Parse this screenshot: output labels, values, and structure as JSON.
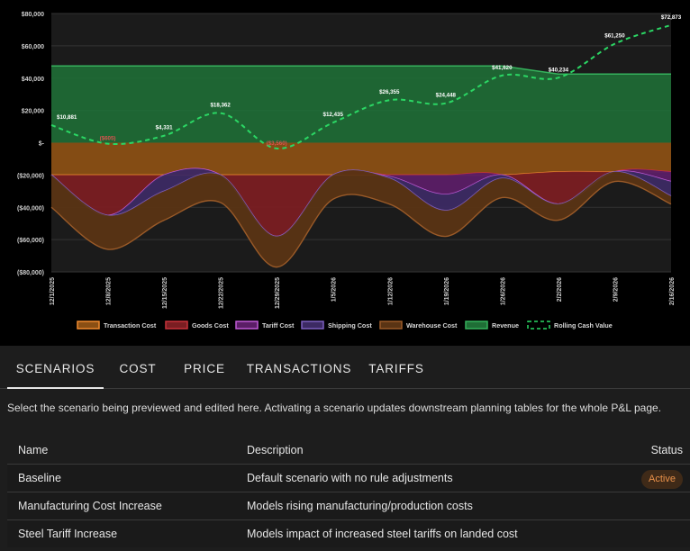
{
  "chart_data": {
    "type": "area",
    "categories": [
      "12/1/2025",
      "12/8/2025",
      "12/15/2025",
      "12/22/2025",
      "12/29/2025",
      "1/5/2026",
      "1/12/2026",
      "1/19/2026",
      "1/26/2026",
      "2/2/2026",
      "2/9/2026",
      "2/16/2026"
    ],
    "ylim": [
      -80000,
      80000
    ],
    "y_ticks": [
      80000,
      60000,
      40000,
      20000,
      0,
      -20000,
      -40000,
      -60000,
      -80000
    ],
    "y_tick_labels": [
      "$80,000",
      "$60,000",
      "$40,000",
      "$20,000",
      "$-",
      "($20,000)",
      "($40,000)",
      "($60,000)",
      "($80,000)"
    ],
    "series": [
      {
        "name": "Revenue",
        "type": "area",
        "values": [
          47500,
          47500,
          47500,
          47500,
          47500,
          47500,
          47500,
          47500,
          47500,
          42500,
          42500,
          42500
        ]
      },
      {
        "name": "Transaction Cost",
        "type": "stacked-area",
        "bottom": [
          -20000,
          -20000,
          -20000,
          -20000,
          -20000,
          -20000,
          -20000,
          -20000,
          -20000,
          -18000,
          -18000,
          -18000
        ]
      },
      {
        "name": "Goods Cost",
        "type": "stacked-area",
        "bottom": [
          -20000,
          -45000,
          -20000,
          -20000,
          -58000,
          -20000,
          -20000,
          -20000,
          -20000,
          -38000,
          -18000,
          -18000
        ]
      },
      {
        "name": "Tariff Cost",
        "type": "stacked-area",
        "bottom": [
          -20000,
          -45000,
          -20000,
          -20000,
          -58000,
          -20000,
          -21000,
          -32000,
          -20000,
          -38000,
          -18000,
          -24000
        ]
      },
      {
        "name": "Shipping Cost",
        "type": "stacked-area",
        "bottom": [
          -20000,
          -45000,
          -30000,
          -20000,
          -58000,
          -20000,
          -22000,
          -42000,
          -22000,
          -38000,
          -18000,
          -33000
        ]
      },
      {
        "name": "Warehouse Cost",
        "type": "stacked-area",
        "bottom": [
          -40000,
          -66000,
          -48000,
          -37000,
          -77000,
          -35000,
          -38000,
          -58000,
          -34000,
          -48000,
          -24000,
          -38000
        ]
      },
      {
        "name": "Rolling Cash Value",
        "type": "line",
        "values": [
          10881,
          -605,
          4331,
          18362,
          -3560,
          12435,
          26355,
          24448,
          41620,
          40234,
          61250,
          72873
        ]
      }
    ],
    "data_labels": [
      "$10,881",
      "($605)",
      "$4,331",
      "$18,362",
      "($3,560)",
      "$12,435",
      "$26,355",
      "$24,448",
      "$41,620",
      "$40,234",
      "$61,250",
      "$72,873"
    ],
    "legend": [
      {
        "name": "Transaction Cost",
        "fill": "#8a4f14",
        "stroke": "#f08a2e",
        "style": "solid"
      },
      {
        "name": "Goods Cost",
        "fill": "#7a1e22",
        "stroke": "#c8323a",
        "style": "solid"
      },
      {
        "name": "Tariff Cost",
        "fill": "#5b1e66",
        "stroke": "#c05ad6",
        "style": "solid"
      },
      {
        "name": "Shipping Cost",
        "fill": "#3c2a63",
        "stroke": "#7d5fc0",
        "style": "solid"
      },
      {
        "name": "Warehouse Cost",
        "fill": "#5a3414",
        "stroke": "#9a5a28",
        "style": "solid"
      },
      {
        "name": "Revenue",
        "fill": "#1f6e36",
        "stroke": "#35b25c",
        "style": "solid"
      },
      {
        "name": "Rolling Cash Value",
        "fill": "none",
        "stroke": "#2bd764",
        "style": "dashed"
      }
    ],
    "legend_position": "bottom"
  },
  "tabs": [
    "SCENARIOS",
    "COST",
    "PRICE",
    "TRANSACTIONS",
    "TARIFFS"
  ],
  "active_tab": "SCENARIOS",
  "description": "Select the scenario being previewed and edited here. Activating a scenario updates downstream planning tables for the whole P&L page.",
  "table": {
    "headers": {
      "name": "Name",
      "description": "Description",
      "status": "Status"
    },
    "rows": [
      {
        "name": "Baseline",
        "description": "Default scenario with no rule adjustments",
        "status": "Active"
      },
      {
        "name": "Manufacturing Cost Increase",
        "description": "Models rising manufacturing/production costs",
        "status": ""
      },
      {
        "name": "Steel Tariff Increase",
        "description": "Models impact of increased steel tariffs on landed cost",
        "status": ""
      }
    ]
  },
  "colors": {
    "active_badge_bg": "#3f2a18",
    "active_badge_text": "#e9914a",
    "rolling_cash_line": "#2bd764",
    "negative_label": "#d9534f"
  }
}
